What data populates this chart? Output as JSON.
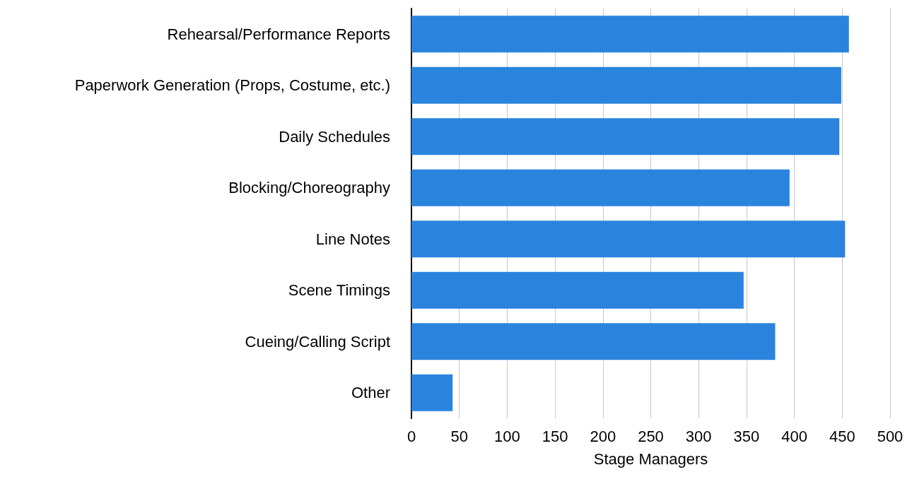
{
  "chart_data": {
    "type": "bar",
    "orientation": "horizontal",
    "xlabel": "Stage Managers",
    "categories": [
      "Rehearsal/Performance Reports",
      "Paperwork Generation (Props, Costume, etc.)",
      "Daily Schedules",
      "Blocking/Choreography",
      "Line Notes",
      "Scene Timings",
      "Cueing/Calling Script",
      "Other"
    ],
    "values": [
      457,
      449,
      447,
      395,
      453,
      347,
      380,
      43
    ],
    "color": "#2a84dd",
    "xlim": [
      0,
      500
    ],
    "xticks": [
      0,
      50,
      100,
      150,
      200,
      250,
      300,
      350,
      400,
      450,
      500
    ],
    "grid": "x"
  }
}
